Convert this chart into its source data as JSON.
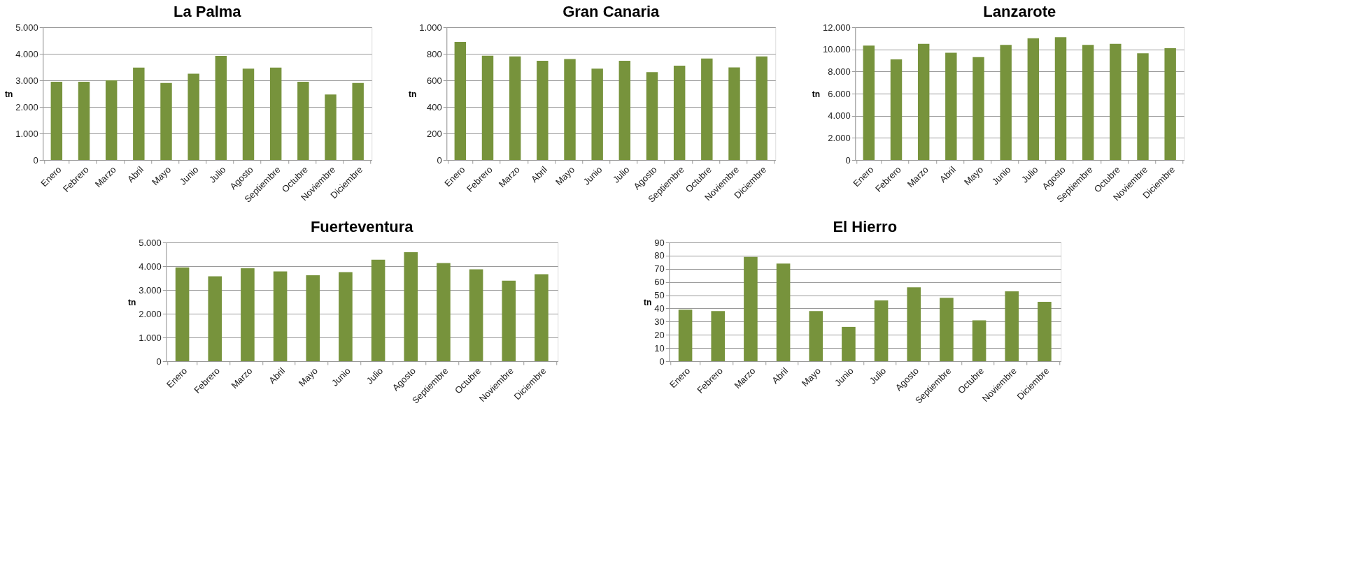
{
  "chart_data": [
    {
      "type": "bar",
      "title": "La Palma",
      "ylabel": "tn",
      "categories": [
        "Enero",
        "Febrero",
        "Marzo",
        "Abril",
        "Mayo",
        "Junio",
        "Julio",
        "Agosto",
        "Septiembre",
        "Octubre",
        "Noviembre",
        "Diciembre"
      ],
      "values": [
        2950,
        2950,
        3000,
        3480,
        2900,
        3250,
        3920,
        3440,
        3480,
        2950,
        2470,
        2900
      ],
      "color": "#77933c",
      "ylim": [
        0,
        5000
      ],
      "yticks": [
        0,
        {
          "value": 1000,
          "label": "1.000"
        },
        {
          "value": 2000,
          "label": "2.000"
        },
        {
          "value": 3000,
          "label": "3.000"
        },
        {
          "value": 4000,
          "label": "4.000"
        },
        {
          "value": 5000,
          "label": "5.000"
        }
      ],
      "grid": "y"
    },
    {
      "type": "bar",
      "title": "Gran Canaria",
      "ylabel": "tn",
      "categories": [
        "Enero",
        "Febrero",
        "Marzo",
        "Abril",
        "Mayo",
        "Junio",
        "Julio",
        "Agosto",
        "Septiembre",
        "Octubre",
        "Noviembre",
        "Diciembre"
      ],
      "values": [
        890,
        785,
        780,
        748,
        760,
        688,
        748,
        662,
        710,
        765,
        697,
        780
      ],
      "color": "#77933c",
      "ylim": [
        0,
        1000
      ],
      "yticks": [
        0,
        200,
        400,
        600,
        800,
        {
          "value": 1000,
          "label": "1.000"
        }
      ],
      "grid": "y"
    },
    {
      "type": "bar",
      "title": "Lanzarote",
      "ylabel": "tn",
      "categories": [
        "Enero",
        "Febrero",
        "Marzo",
        "Abril",
        "Mayo",
        "Junio",
        "Julio",
        "Agosto",
        "Septiembre",
        "Octubre",
        "Noviembre",
        "Diciembre"
      ],
      "values": [
        10350,
        9100,
        10500,
        9700,
        9300,
        10400,
        11000,
        11100,
        10400,
        10500,
        9650,
        10100
      ],
      "color": "#77933c",
      "ylim": [
        0,
        12000
      ],
      "yticks": [
        0,
        {
          "value": 2000,
          "label": "2.000"
        },
        {
          "value": 4000,
          "label": "4.000"
        },
        {
          "value": 6000,
          "label": "6.000"
        },
        {
          "value": 8000,
          "label": "8.000"
        },
        {
          "value": 10000,
          "label": "10.000"
        },
        {
          "value": 12000,
          "label": "12.000"
        }
      ],
      "grid": "y"
    },
    {
      "type": "bar",
      "title": "Fuerteventura",
      "ylabel": "tn",
      "categories": [
        "Enero",
        "Febrero",
        "Marzo",
        "Abril",
        "Mayo",
        "Junio",
        "Julio",
        "Agosto",
        "Septiembre",
        "Octubre",
        "Noviembre",
        "Diciembre"
      ],
      "values": [
        3950,
        3570,
        3910,
        3780,
        3620,
        3750,
        4270,
        4590,
        4130,
        3870,
        3390,
        3660
      ],
      "color": "#77933c",
      "ylim": [
        0,
        5000
      ],
      "yticks": [
        0,
        {
          "value": 1000,
          "label": "1.000"
        },
        {
          "value": 2000,
          "label": "2.000"
        },
        {
          "value": 3000,
          "label": "3.000"
        },
        {
          "value": 4000,
          "label": "4.000"
        },
        {
          "value": 5000,
          "label": "5.000"
        }
      ],
      "grid": "y"
    },
    {
      "type": "bar",
      "title": "El Hierro",
      "ylabel": "tn",
      "categories": [
        "Enero",
        "Febrero",
        "Marzo",
        "Abril",
        "Mayo",
        "Junio",
        "Julio",
        "Agosto",
        "Septiembre",
        "Octubre",
        "Noviembre",
        "Diciembre"
      ],
      "values": [
        39,
        38,
        79,
        74,
        38,
        26,
        46,
        56,
        48,
        31,
        53,
        45
      ],
      "color": "#77933c",
      "ylim": [
        0,
        90
      ],
      "yticks": [
        0,
        10,
        20,
        30,
        40,
        50,
        60,
        70,
        80,
        90
      ],
      "grid": "y"
    }
  ]
}
